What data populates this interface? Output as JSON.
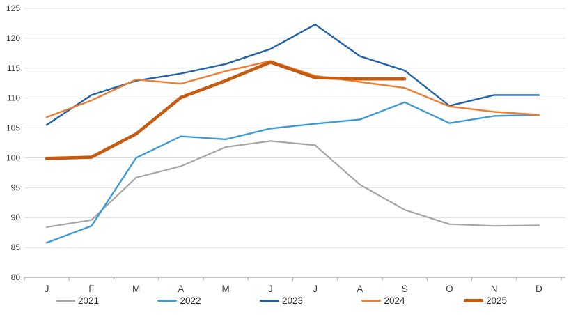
{
  "chart_data": {
    "type": "line",
    "title": "",
    "xlabel": "",
    "ylabel": "",
    "x_categories": [
      "J",
      "F",
      "M",
      "A",
      "M",
      "J",
      "J",
      "A",
      "S",
      "O",
      "N",
      "D"
    ],
    "y_ticks": [
      80,
      85,
      90,
      95,
      100,
      105,
      110,
      115,
      120,
      125
    ],
    "ylim": [
      80,
      125
    ],
    "grid": "horizontal-only",
    "gridline_color": "#DCDCDC",
    "axis_color": "#A6A6A6",
    "label_color": "#404040",
    "legend_position": "bottom",
    "series": [
      {
        "name": "2021",
        "color": "#A6A6A6",
        "stroke_width": 2.2,
        "values": [
          88.4,
          89.6,
          96.7,
          98.6,
          101.8,
          102.8,
          102.1,
          95.5,
          91.3,
          88.9,
          88.6,
          88.7
        ]
      },
      {
        "name": "2022",
        "color": "#3E9BD6",
        "stroke_width": 2.4,
        "values": [
          85.8,
          88.6,
          100.0,
          103.6,
          103.1,
          104.9,
          105.7,
          106.4,
          109.3,
          105.8,
          107.0,
          107.2
        ]
      },
      {
        "name": "2023",
        "color": "#2363A8",
        "stroke_width": 2.4,
        "values": [
          105.5,
          110.5,
          112.9,
          114.1,
          115.7,
          118.2,
          122.3,
          117.0,
          114.6,
          108.7,
          110.5,
          110.5
        ]
      },
      {
        "name": "2024",
        "color": "#ED7D31",
        "stroke_width": 2.4,
        "values": [
          106.8,
          109.6,
          113.1,
          112.4,
          114.5,
          116.2,
          113.7,
          112.7,
          111.7,
          108.6,
          107.7,
          107.2
        ]
      },
      {
        "name": "2025",
        "color": "#C55A11",
        "stroke_width": 4.6,
        "values": [
          99.9,
          100.1,
          104.0,
          110.1,
          112.9,
          116.0,
          113.4,
          113.2,
          113.2
        ]
      }
    ]
  }
}
